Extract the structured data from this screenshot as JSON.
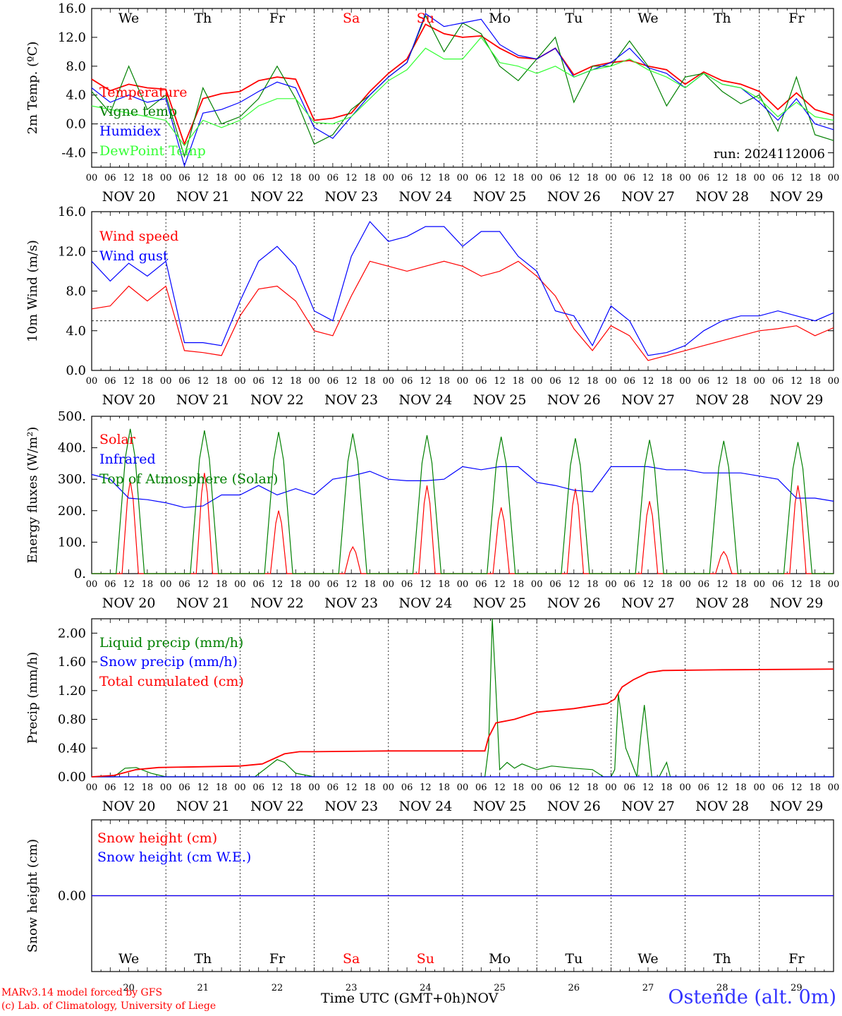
{
  "days": [
    "20",
    "21",
    "22",
    "23",
    "24",
    "25",
    "26",
    "27",
    "28",
    "29"
  ],
  "month": "NOV",
  "hour_ticks": [
    "00",
    "06",
    "12",
    "18"
  ],
  "weekdays": [
    "We",
    "Th",
    "Fr",
    "Sa",
    "Su",
    "Mo",
    "Tu",
    "We",
    "Th",
    "Fr"
  ],
  "weekday_colors": [
    "#000000",
    "#000000",
    "#000000",
    "#ff0000",
    "#ff0000",
    "#000000",
    "#000000",
    "#000000",
    "#000000",
    "#000000"
  ],
  "run_label": "run: 2024112006",
  "x_axis_title": "Time UTC (GMT+0h)",
  "x_axis_month": "NOV",
  "footer": {
    "model": "MARv3.14 model forced by GFS",
    "copyright": "(c) Lab. of Climatology, University of Liege",
    "station": "Ostende (alt. 0m)"
  },
  "colors": {
    "red": "#ff0000",
    "green": "#008000",
    "blue": "#0000ff",
    "lightgreen": "#33ff33",
    "purple": "#800080"
  },
  "chart_data": [
    {
      "type": "line",
      "ylabel": "2m Temp. (ºC)",
      "ylim": [
        -6.0,
        16.0
      ],
      "yticks": [
        "16.0",
        "12.0",
        "8.0",
        "4.0",
        "0.0",
        "-4.0"
      ],
      "ytick_values": [
        16,
        12,
        8,
        4,
        0,
        -4
      ],
      "ref_line": 0,
      "x_days": 10,
      "series": [
        {
          "name": "Temperature",
          "color": "red",
          "x": [
            0,
            0.25,
            0.5,
            0.75,
            1,
            1.25,
            1.5,
            1.75,
            2,
            2.25,
            2.5,
            2.75,
            3,
            3.25,
            3.5,
            3.75,
            4,
            4.25,
            4.5,
            4.75,
            5,
            5.25,
            5.5,
            5.75,
            6,
            6.25,
            6.5,
            6.75,
            7,
            7.25,
            7.5,
            7.75,
            8,
            8.25,
            8.5,
            8.75,
            9,
            9.25,
            9.5,
            9.75,
            10
          ],
          "y": [
            6.2,
            4.6,
            5.5,
            5.0,
            4.8,
            -2.8,
            3.5,
            4.2,
            4.5,
            6.0,
            6.5,
            6.2,
            0.5,
            0.8,
            1.5,
            4.5,
            7.0,
            9.0,
            13.8,
            12.5,
            12.0,
            12.2,
            10.5,
            9.2,
            9.0,
            10.5,
            6.8,
            8.0,
            8.5,
            8.8,
            8.0,
            7.5,
            5.5,
            7.2,
            6.0,
            5.5,
            4.5,
            2.0,
            4.3,
            2.0,
            1.2
          ]
        },
        {
          "name": "Vigne temp",
          "color": "green",
          "x": [
            0,
            0.25,
            0.5,
            0.75,
            1,
            1.25,
            1.5,
            1.75,
            2,
            2.25,
            2.5,
            2.75,
            3,
            3.25,
            3.5,
            3.75,
            4,
            4.25,
            4.5,
            4.75,
            5,
            5.25,
            5.5,
            5.75,
            6,
            6.25,
            6.5,
            6.75,
            7,
            7.25,
            7.5,
            7.75,
            8,
            8.25,
            8.5,
            8.75,
            9,
            9.25,
            9.5,
            9.75,
            10
          ],
          "y": [
            4.5,
            1.5,
            8.0,
            2.0,
            4.0,
            -4.5,
            5.0,
            0.0,
            1.0,
            3.5,
            8.0,
            3.5,
            -2.8,
            -1.5,
            2.0,
            4.0,
            6.5,
            8.5,
            15.0,
            10.0,
            14.0,
            12.5,
            8.0,
            6.0,
            9.0,
            12.0,
            3.0,
            8.0,
            8.0,
            11.5,
            8.0,
            2.5,
            6.5,
            7.0,
            4.5,
            2.8,
            4.0,
            -1.0,
            6.5,
            -1.5,
            -2.3
          ]
        },
        {
          "name": "Humidex",
          "color": "blue",
          "x": [
            0,
            0.25,
            0.5,
            0.75,
            1,
            1.25,
            1.5,
            1.75,
            2,
            2.25,
            2.5,
            2.75,
            3,
            3.25,
            3.5,
            3.75,
            4,
            4.25,
            4.5,
            4.75,
            5,
            5.25,
            5.5,
            5.75,
            6,
            6.25,
            6.5,
            6.75,
            7,
            7.25,
            7.5,
            7.75,
            8,
            8.25,
            8.5,
            8.75,
            9,
            9.25,
            9.5,
            9.75,
            10
          ],
          "y": [
            5.0,
            3.0,
            4.0,
            3.0,
            3.5,
            -5.8,
            1.5,
            2.0,
            3.0,
            4.5,
            5.8,
            5.0,
            -0.5,
            -2.0,
            1.0,
            4.0,
            6.5,
            8.5,
            15.3,
            13.5,
            14.0,
            14.5,
            11.0,
            9.5,
            9.0,
            10.5,
            6.5,
            7.5,
            8.5,
            10.5,
            7.8,
            7.0,
            5.0,
            7.0,
            5.5,
            5.0,
            3.0,
            0.5,
            3.5,
            0.0,
            -0.8
          ]
        },
        {
          "name": "DewPoint Temp",
          "color": "lightgreen",
          "x": [
            0,
            0.25,
            0.5,
            0.75,
            1,
            1.25,
            1.5,
            1.75,
            2,
            2.25,
            2.5,
            2.75,
            3,
            3.25,
            3.5,
            3.75,
            4,
            4.25,
            4.5,
            4.75,
            5,
            5.25,
            5.5,
            5.75,
            6,
            6.25,
            6.5,
            6.75,
            7,
            7.25,
            7.5,
            7.75,
            8,
            8.25,
            8.5,
            8.75,
            9,
            9.25,
            9.5,
            9.75,
            10
          ],
          "y": [
            2.5,
            2.0,
            1.5,
            1.0,
            0.5,
            -3.0,
            0.5,
            -0.5,
            0.5,
            2.5,
            3.5,
            3.5,
            0.2,
            0.0,
            1.0,
            3.5,
            6.0,
            7.5,
            10.5,
            9.0,
            9.0,
            12.0,
            8.5,
            8.0,
            7.0,
            8.0,
            6.5,
            7.5,
            8.0,
            9.0,
            7.5,
            6.5,
            5.0,
            7.0,
            5.5,
            5.0,
            3.5,
            1.0,
            3.0,
            1.0,
            0.5
          ]
        }
      ],
      "legend": [
        "Temperature",
        "Vigne temp",
        "Humidex",
        "DewPoint Temp"
      ]
    },
    {
      "type": "line",
      "ylabel": "10m Wind (m/s)",
      "ylim": [
        0.0,
        16.0
      ],
      "yticks": [
        "16.0",
        "12.0",
        "8.0",
        "4.0",
        "0.0"
      ],
      "ytick_values": [
        16,
        12,
        8,
        4,
        0
      ],
      "ref_line": 5.0,
      "x_days": 10,
      "series": [
        {
          "name": "Wind speed",
          "color": "red",
          "x": [
            0,
            0.25,
            0.5,
            0.75,
            1,
            1.25,
            1.5,
            1.75,
            2,
            2.25,
            2.5,
            2.75,
            3,
            3.25,
            3.5,
            3.75,
            4,
            4.25,
            4.5,
            4.75,
            5,
            5.25,
            5.5,
            5.75,
            6,
            6.25,
            6.5,
            6.75,
            7,
            7.25,
            7.5,
            7.75,
            8,
            8.25,
            8.5,
            8.75,
            9,
            9.25,
            9.5,
            9.75,
            10
          ],
          "y": [
            6.2,
            6.5,
            8.5,
            7.0,
            8.5,
            2.0,
            1.8,
            1.5,
            5.5,
            8.2,
            8.5,
            7.0,
            4.0,
            3.5,
            7.5,
            11.0,
            10.5,
            10.0,
            10.5,
            11.0,
            10.5,
            9.5,
            10.0,
            11.0,
            9.5,
            7.5,
            4.2,
            2.0,
            4.5,
            3.5,
            1.0,
            1.5,
            2.0,
            2.5,
            3.0,
            3.5,
            4.0,
            4.2,
            4.5,
            3.5,
            4.3
          ]
        },
        {
          "name": "Wind gust",
          "color": "blue",
          "x": [
            0,
            0.25,
            0.5,
            0.75,
            1,
            1.25,
            1.5,
            1.75,
            2,
            2.25,
            2.5,
            2.75,
            3,
            3.25,
            3.5,
            3.75,
            4,
            4.25,
            4.5,
            4.75,
            5,
            5.25,
            5.5,
            5.75,
            6,
            6.25,
            6.5,
            6.75,
            7,
            7.25,
            7.5,
            7.75,
            8,
            8.25,
            8.5,
            8.75,
            9,
            9.25,
            9.5,
            9.75,
            10
          ],
          "y": [
            11.0,
            9.0,
            10.8,
            9.5,
            11.0,
            2.8,
            2.8,
            2.5,
            7.0,
            11.0,
            12.5,
            10.5,
            6.0,
            5.0,
            11.5,
            15.0,
            13.0,
            13.5,
            14.5,
            14.5,
            12.5,
            14.0,
            14.0,
            11.5,
            10.0,
            6.0,
            5.5,
            2.5,
            6.5,
            5.0,
            1.5,
            1.8,
            2.5,
            4.0,
            5.0,
            5.5,
            5.5,
            6.0,
            5.5,
            5.0,
            5.8
          ]
        }
      ],
      "legend": [
        "Wind speed",
        "Wind gust"
      ]
    },
    {
      "type": "line",
      "ylabel": "Energy fluxes (W/m²)",
      "ylim": [
        0,
        500
      ],
      "yticks": [
        "500.",
        "400.",
        "300.",
        "200.",
        "100.",
        "0."
      ],
      "ytick_values": [
        500,
        400,
        300,
        200,
        100,
        0
      ],
      "x_days": 10,
      "series": [
        {
          "name": "Solar",
          "color": "red",
          "daily_peaks": [
            295,
            320,
            200,
            85,
            280,
            210,
            270,
            230,
            70,
            280
          ]
        },
        {
          "name": "Infrared",
          "color": "blue",
          "x": [
            0,
            0.25,
            0.5,
            0.75,
            1,
            1.25,
            1.5,
            1.75,
            2,
            2.25,
            2.5,
            2.75,
            3,
            3.25,
            3.5,
            3.75,
            4,
            4.25,
            4.5,
            4.75,
            5,
            5.25,
            5.5,
            5.75,
            6,
            6.25,
            6.5,
            6.75,
            7,
            7.25,
            7.5,
            7.75,
            8,
            8.25,
            8.5,
            8.75,
            9,
            9.25,
            9.5,
            9.75,
            10
          ],
          "y": [
            315,
            300,
            240,
            235,
            225,
            210,
            215,
            250,
            250,
            280,
            250,
            270,
            250,
            300,
            310,
            325,
            300,
            295,
            295,
            300,
            340,
            330,
            340,
            340,
            290,
            280,
            265,
            260,
            340,
            340,
            340,
            330,
            330,
            320,
            320,
            320,
            310,
            300,
            240,
            240,
            230
          ]
        },
        {
          "name": "Top of Atmosphere (Solar)",
          "color": "green",
          "daily_peaks": [
            460,
            455,
            450,
            445,
            440,
            435,
            430,
            425,
            422,
            418
          ]
        }
      ],
      "legend": [
        "Solar",
        "Infrared",
        "Top of Atmosphere (Solar)"
      ]
    },
    {
      "type": "line",
      "ylabel": "Precip (mm/h)",
      "ylim": [
        0.0,
        2.2
      ],
      "yticks": [
        "2.00",
        "1.60",
        "1.20",
        "0.80",
        "0.40",
        "0.00"
      ],
      "ytick_values": [
        2.0,
        1.6,
        1.2,
        0.8,
        0.4,
        0.0
      ],
      "x_days": 10,
      "series": [
        {
          "name": "Liquid precip (mm/h)",
          "color": "green",
          "x": [
            0,
            0.3,
            0.45,
            0.6,
            0.8,
            1,
            2.2,
            2.5,
            2.6,
            2.75,
            3,
            5.3,
            5.35,
            5.4,
            5.45,
            5.5,
            5.6,
            5.7,
            5.8,
            6.0,
            6.2,
            6.5,
            6.75,
            6.9,
            7.0,
            7.05,
            7.1,
            7.2,
            7.35,
            7.4,
            7.45,
            7.55,
            7.65,
            7.75,
            7.8,
            7.9,
            10
          ],
          "y": [
            0,
            0,
            0.12,
            0.13,
            0.05,
            0,
            0,
            0.24,
            0.2,
            0.05,
            0,
            0,
            0.4,
            2.2,
            1.2,
            0.1,
            0.2,
            0.12,
            0.18,
            0.1,
            0.15,
            0.12,
            0.1,
            0,
            0,
            0.1,
            1.15,
            0.4,
            0,
            0.55,
            1.0,
            0,
            0,
            0.2,
            0,
            0,
            0
          ]
        },
        {
          "name": "Snow precip (mm/h)",
          "color": "blue",
          "x": [
            0,
            10
          ],
          "y": [
            0,
            0
          ]
        },
        {
          "name": "Total cumulated (cm)",
          "color": "red",
          "x": [
            0,
            0.3,
            0.6,
            0.9,
            1.5,
            2.0,
            2.3,
            2.6,
            2.8,
            3.0,
            4.0,
            5.3,
            5.35,
            5.45,
            5.7,
            6.0,
            6.5,
            6.95,
            7.05,
            7.15,
            7.3,
            7.5,
            7.7,
            8.5,
            10
          ],
          "y": [
            0,
            0.02,
            0.1,
            0.13,
            0.14,
            0.15,
            0.18,
            0.32,
            0.35,
            0.35,
            0.36,
            0.36,
            0.55,
            0.75,
            0.8,
            0.9,
            0.95,
            1.02,
            1.08,
            1.25,
            1.35,
            1.45,
            1.48,
            1.49,
            1.5
          ]
        }
      ],
      "legend": [
        "Liquid precip (mm/h)",
        "Snow precip (mm/h)",
        "Total cumulated (cm)"
      ]
    },
    {
      "type": "line",
      "ylabel": "Snow height (cm)",
      "ylim": [
        -1.0,
        1.0
      ],
      "yticks": [
        "0.00"
      ],
      "ytick_values": [
        0.0
      ],
      "x_days": 10,
      "series": [
        {
          "name": "Snow height (cm)",
          "color": "red",
          "x": [
            0,
            10
          ],
          "y": [
            0,
            0
          ]
        },
        {
          "name": "Snow height (cm W.E.)",
          "color": "blue",
          "x": [
            0,
            10
          ],
          "y": [
            0,
            0
          ]
        }
      ],
      "legend": [
        "Snow height (cm)",
        "Snow height (cm W.E.)"
      ]
    }
  ]
}
